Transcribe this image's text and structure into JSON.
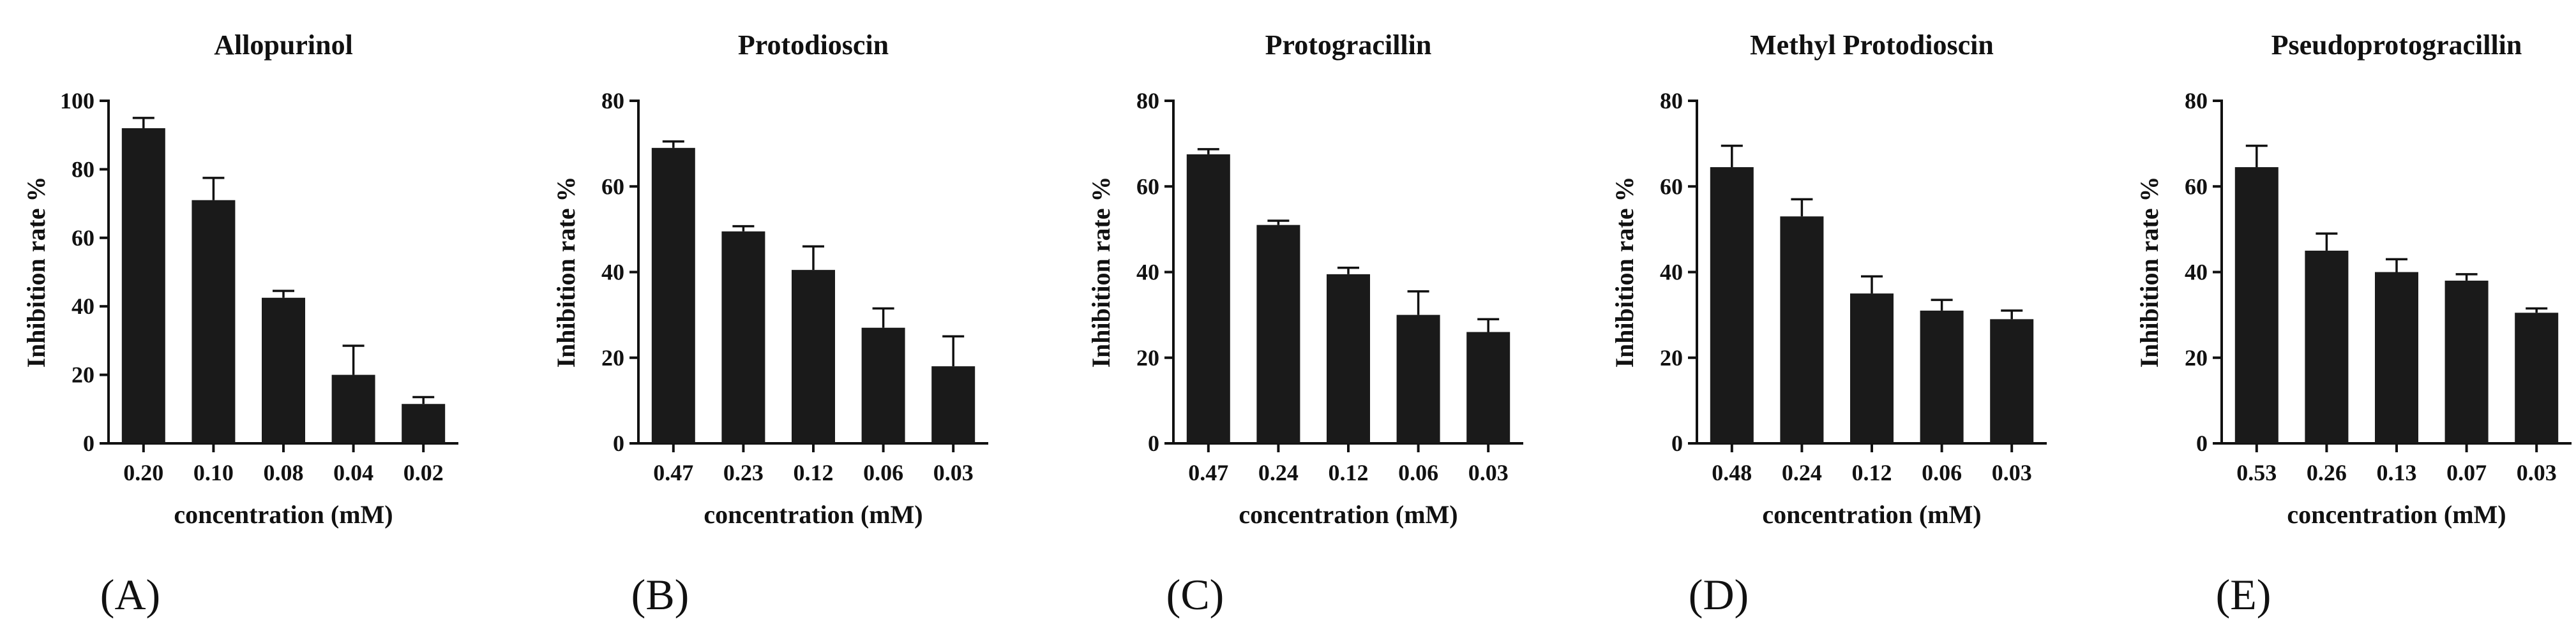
{
  "chart_data": [
    {
      "panel_label": "(A)",
      "type": "bar",
      "title": "Allopurinol",
      "xlabel": "concentration (mM)",
      "ylabel": "Inhibition rate %",
      "ylim": [
        0,
        100
      ],
      "yticks": [
        "0",
        "20",
        "40",
        "60",
        "80",
        "100"
      ],
      "categories": [
        "0.20",
        "0.10",
        "0.08",
        "0.04",
        "0.02"
      ],
      "values": [
        92,
        71,
        42.5,
        20,
        11.5
      ],
      "errors": [
        3,
        6.5,
        2,
        8.5,
        2
      ],
      "bar_color": "#1a1a1a"
    },
    {
      "panel_label": "(B)",
      "type": "bar",
      "title": "Protodioscin",
      "xlabel": "concentration (mM)",
      "ylabel": "Inhibition rate %",
      "ylim": [
        0,
        80
      ],
      "yticks": [
        "0",
        "20",
        "40",
        "60",
        "80"
      ],
      "categories": [
        "0.47",
        "0.23",
        "0.12",
        "0.06",
        "0.03"
      ],
      "values": [
        69,
        49.5,
        40.5,
        27,
        18
      ],
      "errors": [
        1.5,
        1.2,
        5.5,
        4.5,
        7
      ],
      "bar_color": "#1a1a1a"
    },
    {
      "panel_label": "(C)",
      "type": "bar",
      "title": "Protogracillin",
      "xlabel": "concentration (mM)",
      "ylabel": "Inhibition rate %",
      "ylim": [
        0,
        80
      ],
      "yticks": [
        "0",
        "20",
        "40",
        "60",
        "80"
      ],
      "categories": [
        "0.47",
        "0.24",
        "0.12",
        "0.06",
        "0.03"
      ],
      "values": [
        67.5,
        51,
        39.5,
        30,
        26
      ],
      "errors": [
        1.2,
        1,
        1.5,
        5.5,
        3
      ],
      "bar_color": "#1a1a1a"
    },
    {
      "panel_label": "(D)",
      "type": "bar",
      "title": "Methyl Protodioscin",
      "xlabel": "concentration (mM)",
      "ylabel": "Inhibition rate %",
      "ylim": [
        0,
        80
      ],
      "yticks": [
        "0",
        "20",
        "40",
        "60",
        "80"
      ],
      "categories": [
        "0.48",
        "0.24",
        "0.12",
        "0.06",
        "0.03"
      ],
      "values": [
        64.5,
        53,
        35,
        31,
        29
      ],
      "errors": [
        5,
        4,
        4,
        2.5,
        2
      ],
      "bar_color": "#1a1a1a"
    },
    {
      "panel_label": "(E)",
      "type": "bar",
      "title": "Pseudoprotogracillin",
      "xlabel": "concentration (mM)",
      "ylabel": "Inhibition rate %",
      "ylim": [
        0,
        80
      ],
      "yticks": [
        "0",
        "20",
        "40",
        "60",
        "80"
      ],
      "categories": [
        "0.53",
        "0.26",
        "0.13",
        "0.07",
        "0.03"
      ],
      "values": [
        64.5,
        45,
        40,
        38,
        30.5
      ],
      "errors": [
        5,
        4,
        3,
        1.5,
        1
      ],
      "bar_color": "#1a1a1a"
    }
  ]
}
